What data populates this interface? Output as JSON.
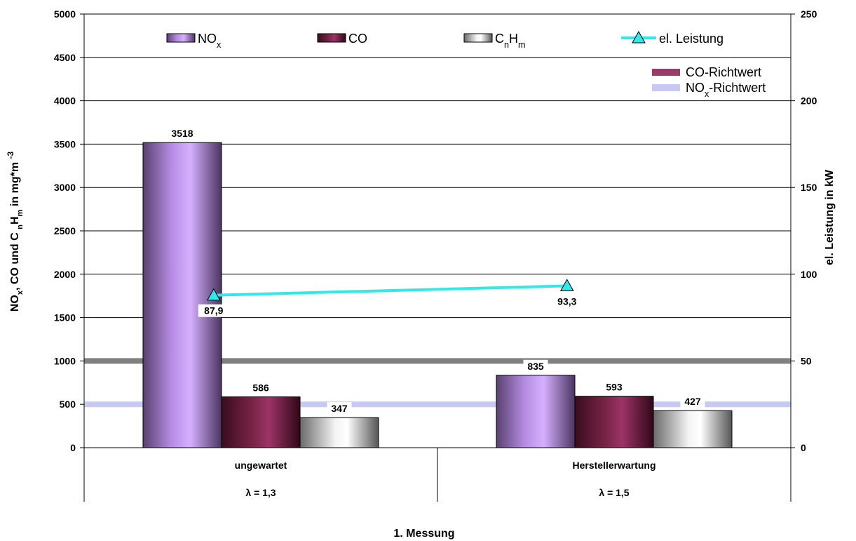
{
  "chart_data": {
    "type": "bar",
    "categories": [
      "ungewartet",
      "Herstellerwartung"
    ],
    "category_sublabels": [
      "λ = 1,3",
      "λ = 1,5"
    ],
    "xlabel": "1. Messung",
    "ylabel": {
      "parts": [
        "NO",
        "x",
        ", CO und C ",
        "n",
        "H",
        "m",
        " in mg*m ",
        "-3"
      ]
    },
    "y2label": "el. Leistung in kW",
    "ylim": [
      0,
      5000
    ],
    "y2lim": [
      0,
      250
    ],
    "yticks": [
      0,
      500,
      1000,
      1500,
      2000,
      2500,
      3000,
      3500,
      4000,
      4500,
      5000
    ],
    "y2ticks": [
      0,
      50,
      100,
      150,
      200,
      250
    ],
    "grid": true,
    "legend_position": "top",
    "series": [
      {
        "key": "nox",
        "name_parts": [
          "NO",
          "x"
        ],
        "values": [
          3518,
          835
        ],
        "labels": [
          "3518",
          "835"
        ],
        "color": "#c49af0"
      },
      {
        "key": "co",
        "name_parts": [
          "CO"
        ],
        "values": [
          586,
          593
        ],
        "labels": [
          "586",
          "593"
        ],
        "color": "#8a2a52"
      },
      {
        "key": "cnhm",
        "name_parts": [
          "C",
          "n",
          "H",
          "m"
        ],
        "values": [
          347,
          427
        ],
        "labels": [
          "347",
          "427"
        ],
        "color": "#d8d8d8"
      }
    ],
    "line_series": {
      "name": "el. Leistung",
      "axis": "right",
      "values": [
        87.9,
        93.3
      ],
      "labels": [
        "87,9",
        "93,3"
      ],
      "color": "#33e8e8"
    },
    "reference_lines": [
      {
        "key": "co-ref",
        "name": "CO-Richtwert",
        "value": 1000,
        "color": "#808080",
        "legend_color": "#9c3b68"
      },
      {
        "key": "nox-ref",
        "name_parts": [
          "NO",
          "x",
          "-Richtwert"
        ],
        "value": 500,
        "color": "#c8c8f4",
        "legend_color": "#c8c8f4"
      }
    ]
  }
}
